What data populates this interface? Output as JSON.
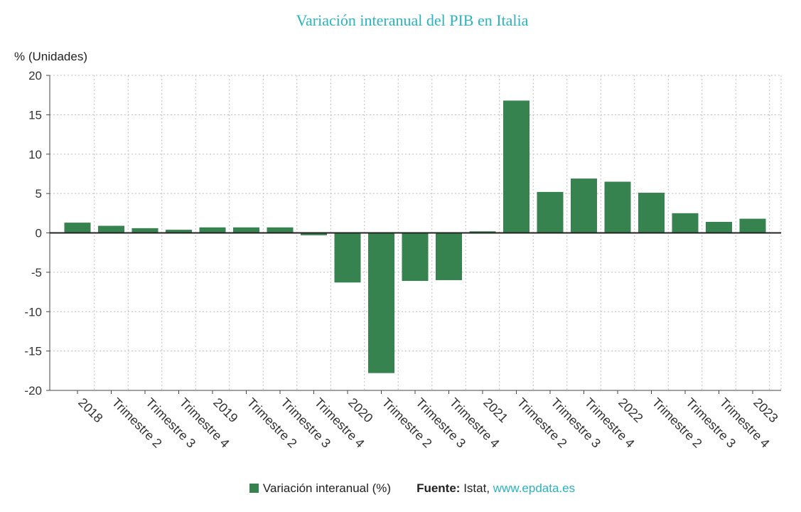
{
  "chart_data": {
    "type": "bar",
    "title": "Variación interanual del PIB en Italia",
    "ylabel": "% (Unidades)",
    "ylim": [
      -20,
      20
    ],
    "yticks": [
      20,
      15,
      10,
      5,
      0,
      -5,
      -10,
      -15,
      -20
    ],
    "grid": true,
    "categories": [
      "2018",
      "Trimestre 2",
      "Trimestre 3",
      "Trimestre 4",
      "2019",
      "Trimestre 2",
      "Trimestre 3",
      "Trimestre 4",
      "2020",
      "Trimestre 2",
      "Trimestre 3",
      "Trimestre 4",
      "2021",
      "Trimestre 2",
      "Trimestre 3",
      "Trimestre 4",
      "2022",
      "Trimestre 2",
      "Trimestre 3",
      "Trimestre 4",
      "2023"
    ],
    "series": [
      {
        "name": "Variación interanual (%)",
        "color": "#36834f",
        "values": [
          1.3,
          0.9,
          0.6,
          0.4,
          0.7,
          0.7,
          0.7,
          -0.3,
          -6.3,
          -17.8,
          -6.1,
          -6.0,
          0.2,
          16.8,
          5.2,
          6.9,
          6.5,
          5.1,
          2.5,
          1.4,
          1.8
        ]
      }
    ],
    "legend_position": "bottom",
    "source_label": "Fuente:",
    "source_name": "Istat,",
    "source_link": "www.epdata.es"
  }
}
